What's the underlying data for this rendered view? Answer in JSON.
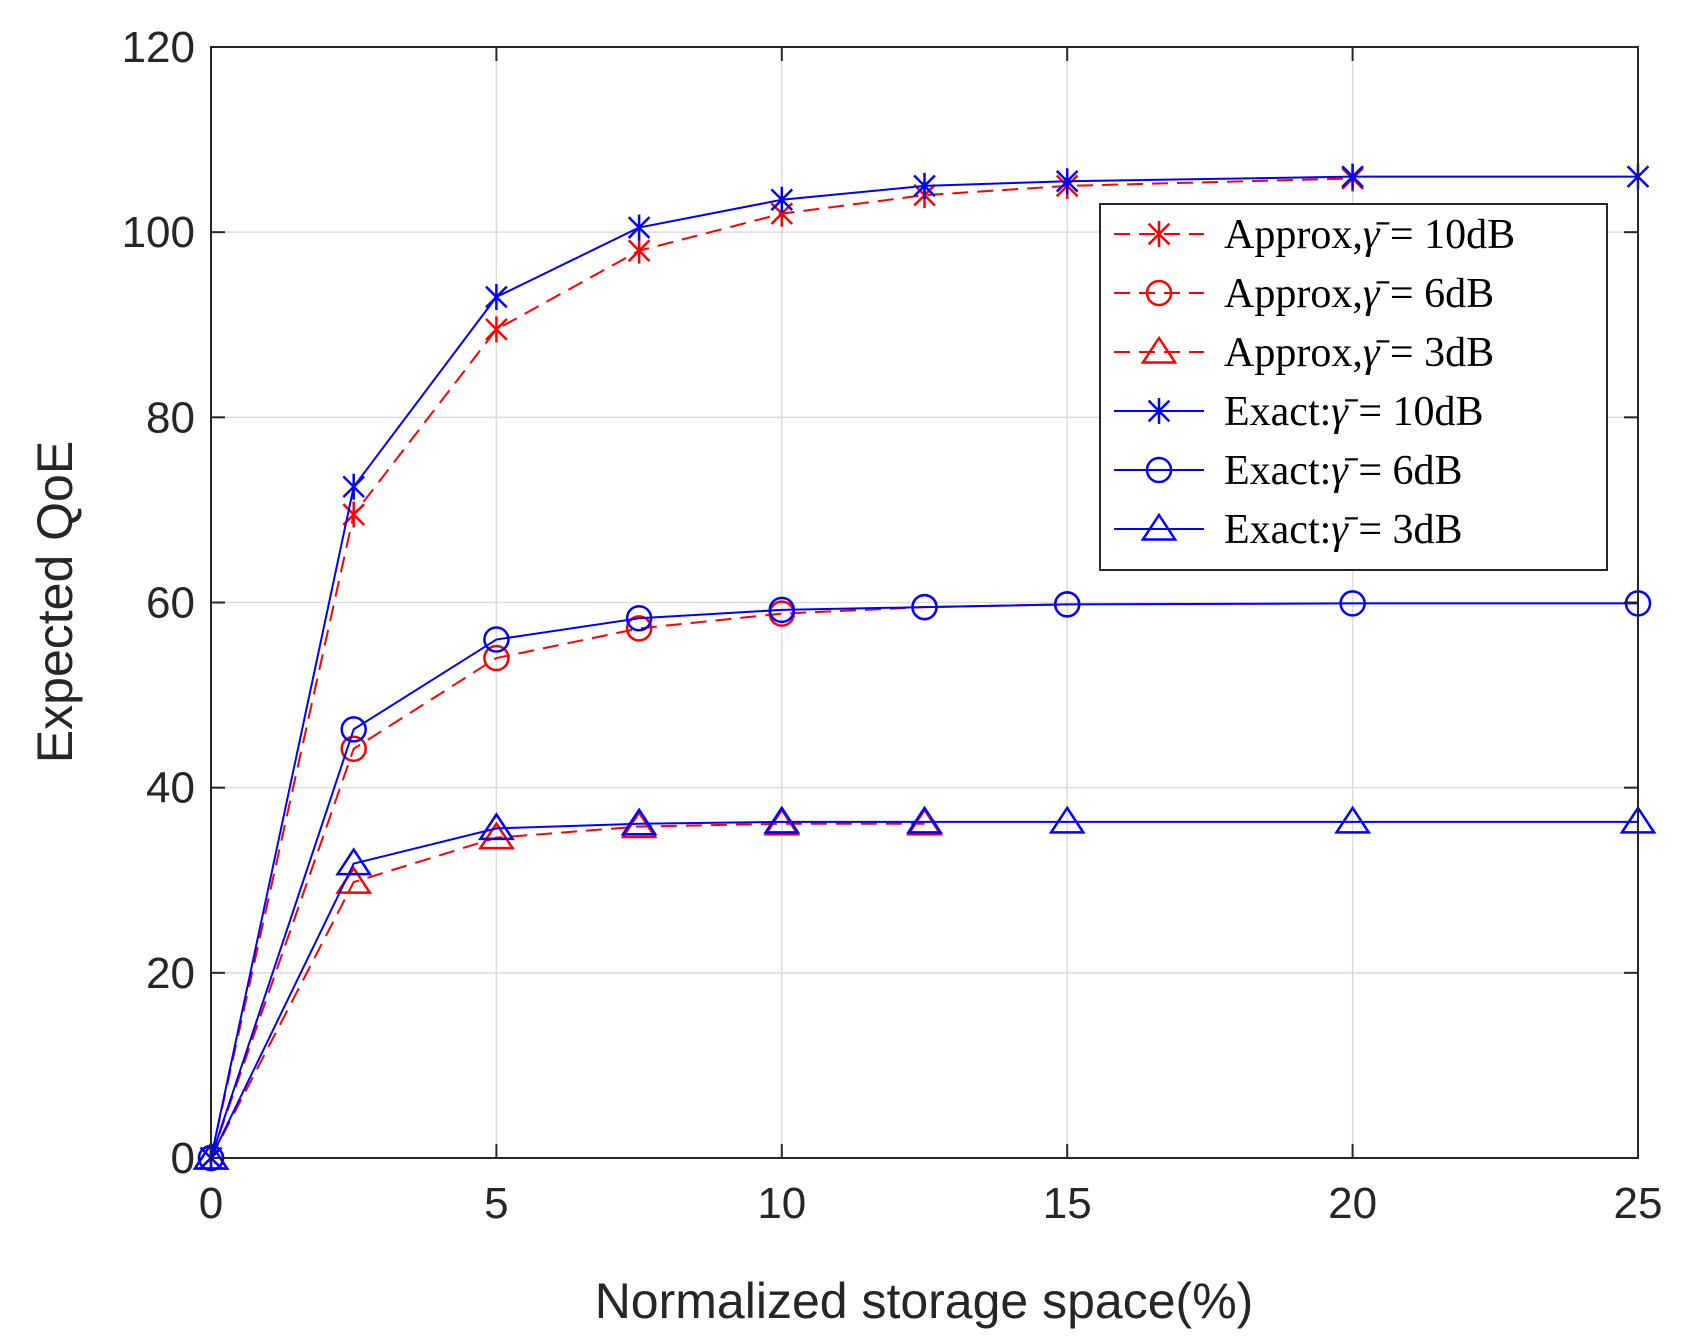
{
  "chart_data": {
    "type": "line",
    "title": "",
    "xlabel": "Normalized storage space(%)",
    "ylabel": "Expected QoE",
    "xlim": [
      0,
      25
    ],
    "ylim": [
      0,
      120
    ],
    "xticks": [
      0,
      5,
      10,
      15,
      20,
      25
    ],
    "yticks": [
      0,
      20,
      40,
      60,
      80,
      100,
      120
    ],
    "grid": true,
    "legend_position": "top-right",
    "series": [
      {
        "name": "Approx,γ̄ = 10dB",
        "legend_prefix": "Approx,",
        "legend_suffix": " = 10dB",
        "color": "#ff0000",
        "style": "dashed",
        "marker": "asterisk",
        "x": [
          0,
          2.5,
          5,
          7.5,
          10,
          12.5,
          15,
          20
        ],
        "y": [
          0,
          69.5,
          89.5,
          98,
          102,
          104,
          105,
          105.8
        ]
      },
      {
        "name": "Approx,γ̄ = 6dB",
        "legend_prefix": "Approx,",
        "legend_suffix": " = 6dB",
        "color": "#ff0000",
        "style": "dashed",
        "marker": "circle",
        "x": [
          0,
          2.5,
          5,
          7.5,
          10,
          12.5,
          15
        ],
        "y": [
          0,
          44.2,
          54,
          57.2,
          58.8,
          59.5,
          59.8
        ]
      },
      {
        "name": "Approx,γ̄ = 3dB",
        "legend_prefix": "Approx,",
        "legend_suffix": " = 3dB",
        "color": "#ff0000",
        "style": "dashed",
        "marker": "triangle",
        "x": [
          0,
          2.5,
          5,
          7.5,
          10,
          12.5
        ],
        "y": [
          0,
          29.8,
          34.6,
          35.8,
          36.1,
          36.1
        ]
      },
      {
        "name": "Exact:γ̄ = 10dB",
        "legend_prefix": "Exact:",
        "legend_suffix": " = 10dB",
        "color": "#0000ff",
        "style": "solid",
        "marker": "asterisk",
        "x": [
          0,
          2.5,
          5,
          7.5,
          10,
          12.5,
          15,
          20,
          25
        ],
        "y": [
          0,
          72.5,
          93,
          100.5,
          103.5,
          105,
          105.5,
          106,
          106
        ]
      },
      {
        "name": "Exact:γ̄ = 6dB",
        "legend_prefix": "Exact:",
        "legend_suffix": " = 6dB",
        "color": "#0000ff",
        "style": "solid",
        "marker": "circle",
        "x": [
          0,
          2.5,
          5,
          7.5,
          10,
          12.5,
          15,
          20,
          25
        ],
        "y": [
          0,
          46.3,
          56,
          58.3,
          59.2,
          59.5,
          59.8,
          59.9,
          59.9
        ]
      },
      {
        "name": "Exact:γ̄ = 3dB",
        "legend_prefix": "Exact:",
        "legend_suffix": " = 3dB",
        "color": "#0000ff",
        "style": "solid",
        "marker": "triangle",
        "x": [
          0,
          2.5,
          5,
          7.5,
          10,
          12.5,
          15,
          20,
          25
        ],
        "y": [
          0,
          31.8,
          35.6,
          36.1,
          36.3,
          36.3,
          36.3,
          36.3,
          36.3
        ]
      }
    ]
  }
}
